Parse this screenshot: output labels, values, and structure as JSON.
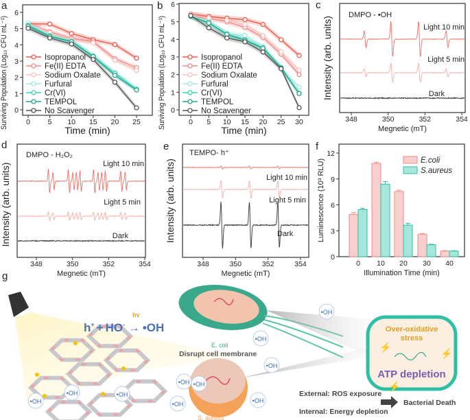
{
  "panel_letters": [
    "a",
    "b",
    "c",
    "d",
    "e",
    "f",
    "g"
  ],
  "chart_data": [
    {
      "panel": "a",
      "type": "line",
      "xlabel": "Time (min)",
      "ylabel": "Surviving Population (Log₁₀ CFU mL⁻¹)",
      "x": [
        0,
        5,
        10,
        15,
        20,
        25
      ],
      "xticks": [
        0,
        5,
        10,
        15,
        20,
        25
      ],
      "yticks": [
        0,
        1,
        2,
        3,
        4,
        5,
        6
      ],
      "xlim": [
        0,
        25
      ],
      "ylim": [
        0,
        6
      ],
      "legend": "bottom-left",
      "grid": false,
      "series": [
        {
          "name": "Isopropanol",
          "color": "#ee5a4a",
          "values": [
            5.3,
            5.28,
            4.7,
            4.32,
            4.02,
            3.18
          ]
        },
        {
          "name": "Fe(II) EDTA",
          "color": "#f38c86",
          "values": [
            5.3,
            4.8,
            4.4,
            4.2,
            3.15,
            2.6
          ]
        },
        {
          "name": "Sodium Oxalate",
          "color": "#f8c3bf",
          "values": [
            5.3,
            4.75,
            4.35,
            4.12,
            3.05,
            2.42
          ]
        },
        {
          "name": "Furfural",
          "color": "#a4ebe0",
          "values": [
            5.35,
            4.6,
            4.25,
            3.35,
            2.3,
            1.3
          ]
        },
        {
          "name": "Cr(VI)",
          "color": "#3ccfb9",
          "values": [
            5.2,
            4.55,
            4.22,
            3.3,
            2.25,
            1.25
          ]
        },
        {
          "name": "TEMPOL",
          "color": "#2aa68c",
          "values": [
            5.15,
            4.52,
            4.2,
            3.28,
            2.12,
            1.22
          ]
        },
        {
          "name": "No Scavenger",
          "color": "#555555",
          "values": [
            5.02,
            4.42,
            4.05,
            3.1,
            1.7,
            0.12
          ]
        }
      ]
    },
    {
      "panel": "b",
      "type": "line",
      "xlabel": "Time (min)",
      "ylabel": "Surviving Population (Log₁₀ CFU mL⁻¹)",
      "x": [
        0,
        5,
        10,
        15,
        20,
        25,
        30
      ],
      "xticks": [
        0,
        5,
        10,
        15,
        20,
        25,
        30
      ],
      "yticks": [
        0,
        1,
        2,
        3,
        4,
        5,
        6
      ],
      "xlim": [
        0,
        30
      ],
      "ylim": [
        0,
        6
      ],
      "legend": "bottom-left",
      "grid": false,
      "series": [
        {
          "name": "Isopropanol",
          "color": "#ee5a4a",
          "values": [
            5.42,
            5.3,
            5.2,
            5.12,
            4.85,
            3.98,
            3.08
          ]
        },
        {
          "name": "Fe(II) EDTA",
          "color": "#f38c86",
          "values": [
            5.4,
            5.2,
            5.0,
            4.68,
            4.1,
            3.15,
            2.0
          ]
        },
        {
          "name": "Sodium Oxalate",
          "color": "#f8c3bf",
          "values": [
            5.4,
            5.22,
            5.08,
            4.85,
            4.22,
            3.3,
            2.25
          ]
        },
        {
          "name": "Furfural",
          "color": "#a4ebe0",
          "values": [
            5.35,
            5.0,
            4.35,
            4.22,
            3.6,
            2.35,
            1.28
          ]
        },
        {
          "name": "Cr(VI)",
          "color": "#3ccfb9",
          "values": [
            5.3,
            4.95,
            4.3,
            3.98,
            3.52,
            2.4,
            0.93
          ]
        },
        {
          "name": "TEMPOL",
          "color": "#2aa68c",
          "values": [
            5.3,
            4.93,
            4.28,
            3.95,
            3.5,
            2.38,
            0.92
          ]
        },
        {
          "name": "No Scavenger",
          "color": "#555555",
          "values": [
            5.35,
            4.65,
            4.08,
            3.86,
            3.28,
            2.33,
            0.12
          ]
        }
      ]
    },
    {
      "panel": "c",
      "type": "line",
      "title": "DMPO -  •OH",
      "xlabel": "Megnetic (mT)",
      "ylabel": "Intensity (arb. units)",
      "xticks": [
        348,
        350,
        352,
        354
      ],
      "xlim": [
        347.4,
        354.4
      ],
      "series": [
        {
          "name": "Light 10 min",
          "color": "#f07a72",
          "peaks": [
            348.75,
            350.2,
            351.7,
            353.2
          ],
          "amplitudes": [
            0.45,
            0.95,
            0.95,
            0.45
          ]
        },
        {
          "name": "Light 5 min",
          "color": "#f8b4ae",
          "peaks": [
            348.75,
            350.2,
            351.7,
            353.2
          ],
          "amplitudes": [
            0.3,
            0.7,
            0.7,
            0.3
          ]
        },
        {
          "name": "Dark",
          "color": "#444444",
          "peaks": [],
          "amplitudes": []
        }
      ]
    },
    {
      "panel": "d",
      "type": "line",
      "title": "DMPO - H₂O₂",
      "xlabel": "Megnetic (mT)",
      "ylabel": "Intensity (arb. units)",
      "xticks": [
        348,
        350,
        352,
        354
      ],
      "xlim": [
        347,
        354.1
      ],
      "series": [
        {
          "name": "Light 10 min",
          "color": "#f07a72",
          "peaks": [
            348.7,
            348.95,
            349.8,
            350.05,
            350.25,
            350.45,
            351.2,
            351.45,
            351.65,
            351.85,
            352.7,
            352.95
          ],
          "amplitudes": [
            0.8,
            0.6,
            0.8,
            0.6,
            0.6,
            0.7,
            0.8,
            0.6,
            0.6,
            0.7,
            0.7,
            0.6
          ]
        },
        {
          "name": "Light 5 min",
          "color": "#f8b4ae",
          "peaks": [
            348.7,
            348.95,
            349.8,
            350.05,
            350.25,
            350.45,
            351.2,
            351.45,
            351.65,
            351.85,
            352.7,
            352.95
          ],
          "amplitudes": [
            0.45,
            0.35,
            0.45,
            0.35,
            0.35,
            0.4,
            0.45,
            0.35,
            0.35,
            0.4,
            0.4,
            0.35
          ]
        },
        {
          "name": "Dark",
          "color": "#444444",
          "peaks": [],
          "amplitudes": []
        }
      ]
    },
    {
      "panel": "e",
      "type": "line",
      "title": "TEMPO- h⁺",
      "xlabel": "Megnetic (mT)",
      "ylabel": "Intensity (arb. units)",
      "xticks": [
        348,
        350,
        352,
        354
      ],
      "xlim": [
        346.6,
        355.2
      ],
      "series": [
        {
          "name": "Light 10 min",
          "color": "#f07a72",
          "peaks": [
            349.15,
            350.9,
            352.65
          ],
          "amplitudes": [
            0.15,
            0.15,
            0.15
          ]
        },
        {
          "name": "Light 5 min",
          "color": "#f8b4ae",
          "peaks": [
            349.15,
            350.9,
            352.65
          ],
          "amplitudes": [
            0.45,
            0.45,
            0.45
          ]
        },
        {
          "name": "Dark",
          "color": "#444444",
          "peaks": [
            349.15,
            350.9,
            352.65
          ],
          "amplitudes": [
            1.0,
            1.0,
            1.0
          ]
        }
      ]
    },
    {
      "panel": "f",
      "type": "bar",
      "xlabel": "Illumination Time (min)",
      "ylabel": "Luminescence (10³ RLU)",
      "categories": [
        "0",
        "10",
        "20",
        "30",
        "40"
      ],
      "yticks": [
        0,
        3,
        6,
        9,
        12
      ],
      "ylim": [
        0,
        12.5
      ],
      "legend": "top-right",
      "series": [
        {
          "name": "E.coli",
          "color": "#f8cfcc",
          "edge": "#f08c86",
          "values": [
            4.9,
            10.8,
            7.55,
            2.6,
            0.65
          ],
          "errors": [
            0.2,
            0.15,
            0.15,
            0.08,
            0.05
          ]
        },
        {
          "name": "S.aureus",
          "color": "#a7e6da",
          "edge": "#2fbfa4",
          "values": [
            5.45,
            8.4,
            3.65,
            1.38,
            0.65
          ],
          "errors": [
            0.15,
            0.3,
            0.22,
            0.06,
            0.04
          ]
        }
      ]
    }
  ],
  "diagram": {
    "equation": {
      "lhs": "h",
      "plus": "+",
      "ho": "HO",
      "arrow_label": "hv",
      "rhs": "•OH"
    },
    "oh_label": "•OH",
    "ecoli_label": "E. coli",
    "saureus_label": "S. aureus",
    "disrupt": "Disrupt cell membrane",
    "stress": "Over-oxidative stress",
    "stress_line1": "Over-oxidative",
    "stress_line2": "stress",
    "atp": "ATP depletion",
    "external": "External: ROS exposure",
    "internal": "Internal: Energy depletion",
    "death": "Bacterial Death"
  }
}
